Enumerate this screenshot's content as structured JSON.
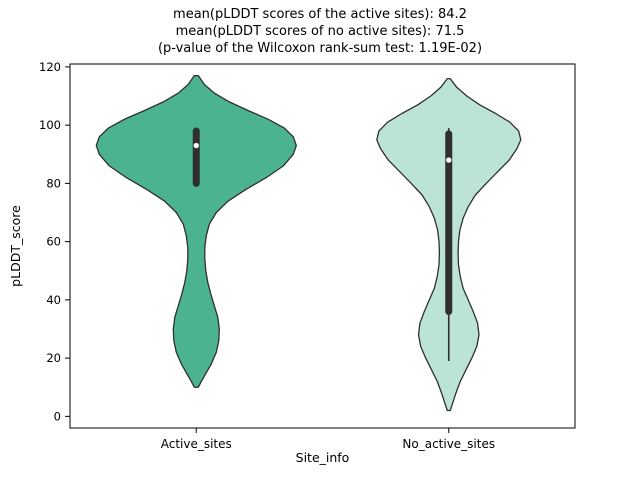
{
  "chart_data": {
    "type": "violin",
    "title_lines": [
      "mean(pLDDT scores of the active sites): 84.2",
      "mean(pLDDT scores of no active sites): 71.5",
      "(p-value of the Wilcoxon rank-sum test: 1.19E-02)"
    ],
    "mean_active_sites": 84.2,
    "mean_no_active_sites": 71.5,
    "p_value": "1.19E-02",
    "xlabel": "Site_info",
    "ylabel": "pLDDT_score",
    "ylim": [
      -4,
      121
    ],
    "yticks": [
      0,
      20,
      40,
      60,
      80,
      100,
      120
    ],
    "categories": [
      "Active_sites",
      "No_active_sites"
    ],
    "colors": {
      "edge": "#2f2f2f",
      "box": "#2f2f2f",
      "median_dot": "#ffffff",
      "spine": "#000000"
    },
    "series": [
      {
        "name": "Active_sites",
        "fill": "#4cb391",
        "halfwidth": 100,
        "median": 93,
        "q1": 80,
        "q3": 98,
        "whisker_low": 79,
        "whisker_high": 99,
        "min": 10,
        "max": 117,
        "profile": [
          [
            10,
            0.02
          ],
          [
            12,
            0.05
          ],
          [
            15,
            0.1
          ],
          [
            18,
            0.15
          ],
          [
            22,
            0.2
          ],
          [
            26,
            0.225
          ],
          [
            30,
            0.23
          ],
          [
            34,
            0.215
          ],
          [
            38,
            0.18
          ],
          [
            42,
            0.145
          ],
          [
            46,
            0.115
          ],
          [
            50,
            0.095
          ],
          [
            54,
            0.085
          ],
          [
            58,
            0.085
          ],
          [
            62,
            0.1
          ],
          [
            66,
            0.13
          ],
          [
            70,
            0.2
          ],
          [
            74,
            0.32
          ],
          [
            78,
            0.5
          ],
          [
            82,
            0.7
          ],
          [
            86,
            0.87
          ],
          [
            90,
            0.97
          ],
          [
            93,
            1.0
          ],
          [
            96,
            0.97
          ],
          [
            99,
            0.88
          ],
          [
            102,
            0.72
          ],
          [
            105,
            0.52
          ],
          [
            108,
            0.33
          ],
          [
            111,
            0.18
          ],
          [
            114,
            0.08
          ],
          [
            117,
            0.02
          ]
        ]
      },
      {
        "name": "No_active_sites",
        "fill": "#bce4d4",
        "halfwidth": 72,
        "median": 88,
        "q1": 36,
        "q3": 97,
        "whisker_low": 19,
        "whisker_high": 99,
        "min": 2,
        "max": 116,
        "profile": [
          [
            2,
            0.02
          ],
          [
            5,
            0.06
          ],
          [
            8,
            0.1
          ],
          [
            12,
            0.16
          ],
          [
            16,
            0.24
          ],
          [
            20,
            0.32
          ],
          [
            24,
            0.39
          ],
          [
            28,
            0.42
          ],
          [
            32,
            0.4
          ],
          [
            36,
            0.34
          ],
          [
            40,
            0.27
          ],
          [
            44,
            0.2
          ],
          [
            48,
            0.16
          ],
          [
            52,
            0.135
          ],
          [
            56,
            0.13
          ],
          [
            60,
            0.135
          ],
          [
            64,
            0.155
          ],
          [
            68,
            0.2
          ],
          [
            72,
            0.27
          ],
          [
            76,
            0.37
          ],
          [
            80,
            0.52
          ],
          [
            84,
            0.68
          ],
          [
            88,
            0.84
          ],
          [
            92,
            0.95
          ],
          [
            95,
            1.0
          ],
          [
            98,
            0.97
          ],
          [
            101,
            0.85
          ],
          [
            104,
            0.65
          ],
          [
            107,
            0.43
          ],
          [
            110,
            0.25
          ],
          [
            113,
            0.11
          ],
          [
            116,
            0.02
          ]
        ]
      }
    ]
  }
}
